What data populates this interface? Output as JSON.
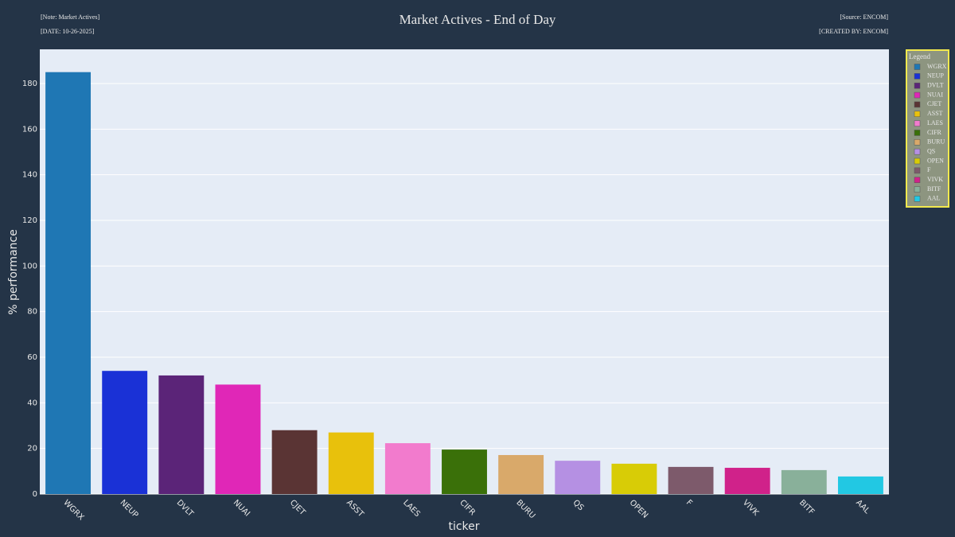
{
  "chart_data": {
    "type": "bar",
    "title": "Market Actives - End of Day",
    "note": "[Note: Market Actives]",
    "date": "[DATE: 10-26-2025]",
    "source": "[Source: ENCOM]",
    "created_by": "[CREATED BY: ENCOM]",
    "x_label": "ticker",
    "y_label": "% performance",
    "legend_title": "Legend",
    "categories": [
      "WGRX",
      "NEUP",
      "DVLT",
      "NUAI",
      "CJET",
      "ASST",
      "LAES",
      "CIFR",
      "BURU",
      "QS",
      "OPEN",
      "F",
      "VIVK",
      "BITF",
      "AAL"
    ],
    "values": [
      185,
      54,
      52,
      48,
      28,
      27,
      22.3,
      19.5,
      17.1,
      14.6,
      13.3,
      11.9,
      11.5,
      10.5,
      7.7
    ],
    "colors": [
      "#1f77b4",
      "#1a31d6",
      "#5b2478",
      "#e027b7",
      "#5a3434",
      "#e8c10c",
      "#f27bcd",
      "#3a7009",
      "#d9a96a",
      "#b590e3",
      "#d8cc06",
      "#7d5a6b",
      "#d0228a",
      "#89b09a",
      "#22c8e3"
    ],
    "ylim": [
      0,
      195
    ],
    "yticks": [
      0,
      20,
      40,
      60,
      80,
      100,
      120,
      140,
      160,
      180
    ],
    "grid": true
  }
}
